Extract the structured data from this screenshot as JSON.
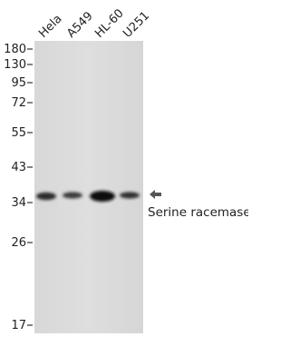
{
  "lanes": [
    "Hela",
    "A549",
    "HL-60",
    "U251"
  ],
  "markers": [
    "180",
    "130",
    "95",
    "72",
    "55",
    "43",
    "34",
    "26",
    "17"
  ],
  "target": "Serine racemase"
}
